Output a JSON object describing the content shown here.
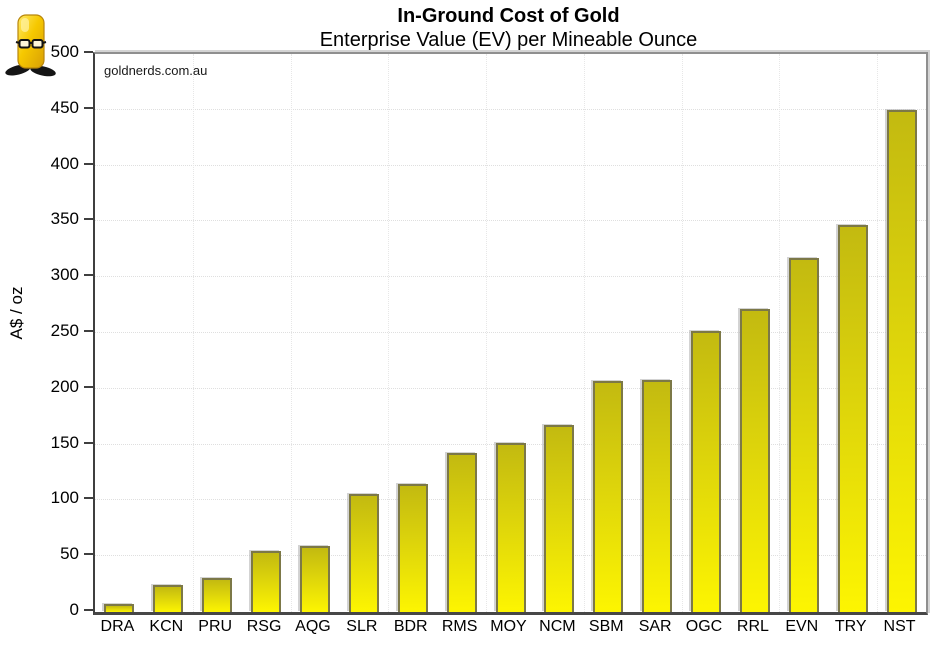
{
  "chart_data": {
    "type": "bar",
    "title": "In-Ground Cost of Gold",
    "subtitle": "Enterprise Value (EV) per Mineable Ounce",
    "watermark": "goldnerds.com.au",
    "ylabel": "A$ / oz",
    "xlabel": "",
    "categories": [
      "DRA",
      "KCN",
      "PRU",
      "RSG",
      "AQG",
      "SLR",
      "BDR",
      "RMS",
      "MOY",
      "NCM",
      "SBM",
      "SAR",
      "OGC",
      "RRL",
      "EVN",
      "TRY",
      "NST"
    ],
    "values": [
      5,
      22,
      29,
      53,
      57,
      104,
      113,
      141,
      150,
      166,
      205,
      206,
      250,
      270,
      315,
      345,
      448
    ],
    "ylim": [
      0,
      500
    ],
    "ytick_step": 50,
    "grid": true,
    "vertical_grid_every": 2,
    "legend": "none",
    "colors": {
      "bar_top": "#c3ba10",
      "bar_mid": "#ddd40b",
      "bar_bottom": "#fdf501",
      "bar_border": "#7c7847",
      "grid": "#dfdfdf",
      "axis": "#3f3f3f",
      "plot_border": "#8f8f8f",
      "mascot_gold": "#f6c800"
    }
  }
}
